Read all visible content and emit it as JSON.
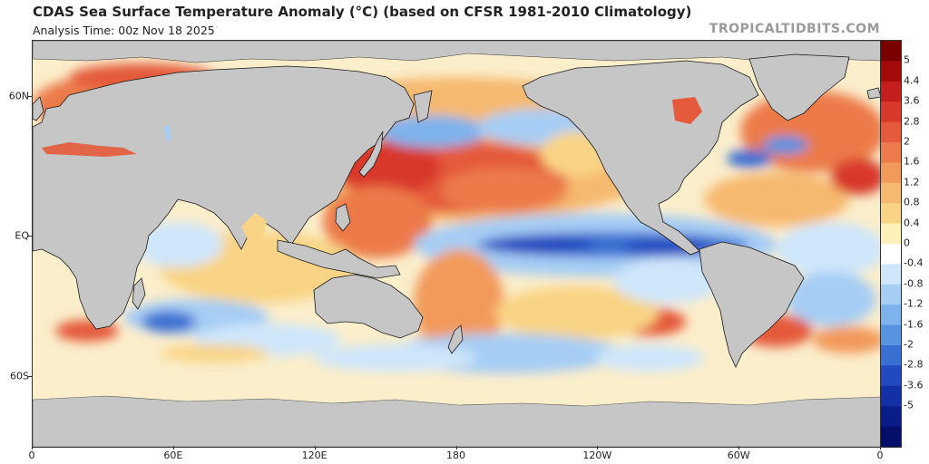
{
  "header": {
    "title": "CDAS Sea Surface Temperature Anomaly (°C) (based on CFSR 1981-2010 Climatology)",
    "subtitle": "Analysis Time: 00z Nov 18 2025",
    "brand": "TROPICALTIDBITS.COM"
  },
  "axes": {
    "lat_labels": [
      {
        "text": "60N",
        "lat": 60
      },
      {
        "text": "EQ",
        "lat": 0
      },
      {
        "text": "60S",
        "lat": -60
      }
    ],
    "lon_labels": [
      {
        "text": "0",
        "lon": 0
      },
      {
        "text": "60E",
        "lon": 60
      },
      {
        "text": "120E",
        "lon": 120
      },
      {
        "text": "180",
        "lon": 180
      },
      {
        "text": "120W",
        "lon": 240
      },
      {
        "text": "60W",
        "lon": 300
      },
      {
        "text": "0",
        "lon": 360
      }
    ]
  },
  "colorbar": {
    "labels": [
      "5",
      "4.4",
      "3.6",
      "2.8",
      "2",
      "1.6",
      "1.2",
      "0.8",
      "0.4",
      "0",
      "-0.4",
      "-0.8",
      "-1.2",
      "-1.6",
      "-2",
      "-2.8",
      "-3.6",
      "-5"
    ],
    "colors": [
      "#7a0000",
      "#a30a0a",
      "#c41e1e",
      "#d8392b",
      "#e45a3a",
      "#ec7a4a",
      "#f29a5c",
      "#f6b970",
      "#f9d486",
      "#fdf0b8",
      "#ffffff",
      "#cfe6fb",
      "#a6cdf4",
      "#7eb2ec",
      "#5893e0",
      "#3a6fd2",
      "#2249bf",
      "#1430a6",
      "#0a1c88",
      "#050f6a"
    ]
  },
  "colors": {
    "land": "#c6c6c6",
    "border": "#1a1a1a",
    "ocean_neutral": "#fbeecb"
  }
}
